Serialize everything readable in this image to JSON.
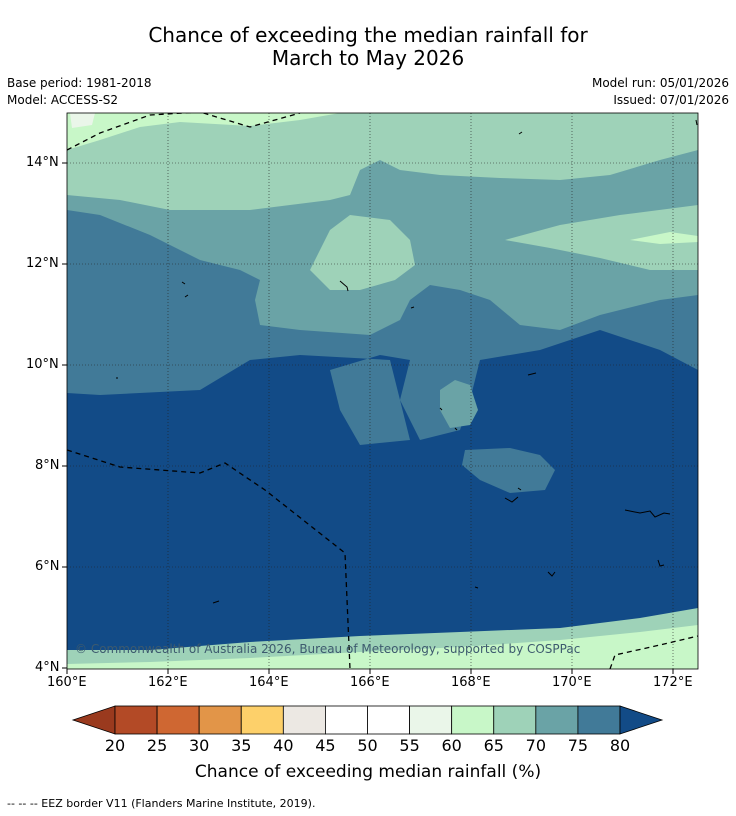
{
  "title_line1": "Chance of exceeding the median rainfall for",
  "title_line2": "March to May 2026",
  "meta": {
    "base_period": "Base period: 1981-2018",
    "model": "Model: ACCESS-S2",
    "model_run": "Model run: 05/01/2026",
    "issued": "Issued: 07/01/2026"
  },
  "copyright": "© Commonwealth of Australia 2026, Bureau of Meteorology, supported by COSPPac",
  "lat_ticks": [
    "14°N",
    "12°N",
    "10°N",
    "8°N",
    "6°N",
    "4°N"
  ],
  "lon_ticks": [
    "160°E",
    "162°E",
    "164°E",
    "166°E",
    "168°E",
    "170°E",
    "172°E"
  ],
  "colorbar": {
    "labels": [
      "20",
      "25",
      "30",
      "35",
      "40",
      "45",
      "50",
      "55",
      "60",
      "65",
      "70",
      "75",
      "80"
    ],
    "colors": [
      "#b34a26",
      "#cf6732",
      "#e29548",
      "#fdd06a",
      "#ece8e3",
      "#ffffff",
      "#ffffff",
      "#eaf6e9",
      "#c8f7c8",
      "#9ed2b8",
      "#6aa3a6",
      "#417a98"
    ],
    "below_color": "#9a3a1e",
    "above_color": "#124b87",
    "title": "Chance of exceeding median rainfall (%)"
  },
  "footnote": "--  --  -- EEZ border V11 (Flanders Marine Institute, 2019)."
}
